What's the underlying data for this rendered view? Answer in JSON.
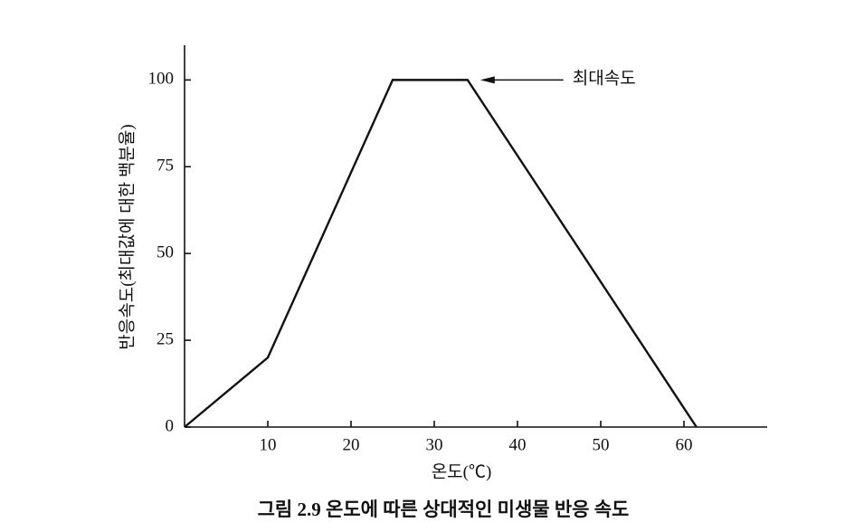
{
  "chart_data": {
    "type": "line",
    "title": "그림 2.9   온도에 따른 상대적인 미생물 반응 속도",
    "x_label": "온도(℃)",
    "y_label": "반응속도(최대값에 대한 백분율)",
    "annotation": "최대속도",
    "x": [
      0,
      10,
      25,
      34,
      61.5
    ],
    "values": [
      0,
      20,
      100,
      100,
      0
    ],
    "color": "#111111",
    "xlim": [
      0,
      70
    ],
    "xticks": [
      10,
      20,
      30,
      40,
      50,
      60
    ],
    "ylim": [
      0,
      110
    ],
    "yticks": [
      0,
      25,
      50,
      75,
      100
    ],
    "grid": false
  }
}
